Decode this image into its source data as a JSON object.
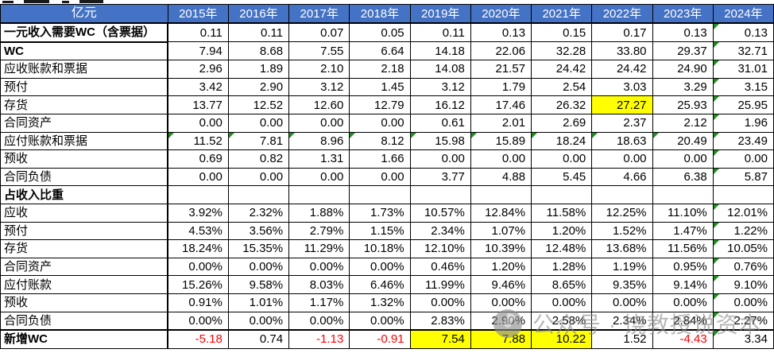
{
  "colors": {
    "header_bg": "#4472C4",
    "header_text": "#FFFFFF",
    "grid_line": "#000000",
    "highlight_yellow": "#FFFF00",
    "negative_red": "#FF0000",
    "error_triangle_green": "#1E8E1E",
    "watermark_gray": "#8C8C8C"
  },
  "table": {
    "unit_header": "亿元",
    "year_headers": [
      "2015年",
      "2016年",
      "2017年",
      "2018年",
      "2019年",
      "2020年",
      "2021年",
      "2022年",
      "2023年",
      "2024年"
    ],
    "rows": [
      {
        "label": "一元收入需要WC（含票据）",
        "bold": true,
        "thick_label_underline": true,
        "values": [
          "0.11",
          "0.11",
          "0.07",
          "0.05",
          "0.11",
          "0.13",
          "0.15",
          "0.17",
          "0.13",
          "0.13"
        ],
        "triangles": [
          9
        ]
      },
      {
        "label": "WC",
        "bold": true,
        "values": [
          "7.94",
          "8.68",
          "7.55",
          "6.64",
          "14.18",
          "22.06",
          "32.28",
          "33.80",
          "29.37",
          "32.71"
        ],
        "triangles": [
          9
        ]
      },
      {
        "label": "应收账款和票据",
        "values": [
          "2.96",
          "1.89",
          "2.10",
          "2.18",
          "14.08",
          "21.57",
          "24.42",
          "24.42",
          "24.90",
          "31.01"
        ],
        "triangles": [
          9
        ]
      },
      {
        "label": "预付",
        "values": [
          "3.42",
          "2.90",
          "3.12",
          "1.45",
          "3.12",
          "1.79",
          "2.54",
          "3.03",
          "3.29",
          "3.15"
        ],
        "triangles": [
          9
        ]
      },
      {
        "label": "存货",
        "values": [
          "13.77",
          "12.52",
          "12.60",
          "12.79",
          "16.12",
          "17.46",
          "26.32",
          "27.27",
          "25.93",
          "25.95"
        ],
        "yellow": [
          7
        ],
        "triangles": [
          9
        ]
      },
      {
        "label": "合同资产",
        "values": [
          "0.00",
          "0.00",
          "0.00",
          "0.00",
          "0.61",
          "2.01",
          "2.69",
          "2.37",
          "2.12",
          "1.96"
        ],
        "triangles": [
          9
        ]
      },
      {
        "label": "应付账款和票据",
        "values": [
          "11.52",
          "7.81",
          "8.96",
          "8.12",
          "15.98",
          "15.89",
          "18.24",
          "18.63",
          "20.49",
          "23.49"
        ],
        "triangles": [
          0,
          1,
          2,
          3,
          4,
          5,
          6,
          7,
          8,
          9
        ]
      },
      {
        "label": "预收",
        "values": [
          "0.69",
          "0.82",
          "1.31",
          "1.66",
          "0.00",
          "0.00",
          "0.00",
          "0.00",
          "0.00",
          "0.00"
        ],
        "triangles": [
          9
        ]
      },
      {
        "label": "合同负债",
        "values": [
          "0.00",
          "0.00",
          "0.00",
          "0.00",
          "3.77",
          "4.88",
          "5.45",
          "4.66",
          "6.38",
          "5.87"
        ],
        "triangles": [
          9
        ]
      },
      {
        "label": "占收入比重",
        "bold": true,
        "values": [
          "",
          "",
          "",
          "",
          "",
          "",
          "",
          "",
          "",
          ""
        ],
        "triangles": []
      },
      {
        "label": "应收",
        "values": [
          "3.92%",
          "2.32%",
          "1.88%",
          "1.73%",
          "10.57%",
          "12.84%",
          "11.58%",
          "12.25%",
          "11.10%",
          "12.01%"
        ],
        "triangles": [
          9
        ]
      },
      {
        "label": "预付",
        "values": [
          "4.53%",
          "3.56%",
          "2.79%",
          "1.15%",
          "2.34%",
          "1.07%",
          "1.20%",
          "1.52%",
          "1.47%",
          "1.22%"
        ],
        "triangles": [
          9
        ]
      },
      {
        "label": "存货",
        "values": [
          "18.24%",
          "15.35%",
          "11.29%",
          "10.18%",
          "12.10%",
          "10.39%",
          "12.48%",
          "13.68%",
          "11.56%",
          "10.05%"
        ],
        "triangles": [
          9
        ]
      },
      {
        "label": "合同资产",
        "values": [
          "0.00%",
          "0.00%",
          "0.00%",
          "0.00%",
          "0.46%",
          "1.20%",
          "1.28%",
          "1.19%",
          "0.95%",
          "0.76%"
        ],
        "triangles": [
          9
        ]
      },
      {
        "label": "应付账款",
        "values": [
          "15.26%",
          "9.58%",
          "8.03%",
          "6.46%",
          "11.99%",
          "9.46%",
          "8.65%",
          "9.35%",
          "9.14%",
          "9.10%"
        ],
        "triangles": [
          9
        ]
      },
      {
        "label": "预收",
        "values": [
          "0.91%",
          "1.01%",
          "1.17%",
          "1.32%",
          "0.00%",
          "0.00%",
          "0.00%",
          "0.00%",
          "0.00%",
          "0.00%"
        ],
        "triangles": [
          9
        ]
      },
      {
        "label": "合同负债",
        "values": [
          "0.00%",
          "0.00%",
          "0.00%",
          "0.00%",
          "2.83%",
          "2.90%",
          "2.58%",
          "2.34%",
          "2.84%",
          "2.27%"
        ],
        "triangles": [
          9
        ]
      },
      {
        "label": "新增WC",
        "bold": true,
        "thick_top": true,
        "values": [
          "-5.18",
          "0.74",
          "-1.13",
          "-0.91",
          "7.54",
          "7.88",
          "10.22",
          "1.52",
          "-4.43",
          "3.34"
        ],
        "yellow": [
          4,
          5,
          6
        ],
        "triangles": [
          9
        ]
      }
    ]
  },
  "watermark": {
    "text": "公众号 · 饶教授说资本",
    "icon": "camera-lens-icon"
  }
}
